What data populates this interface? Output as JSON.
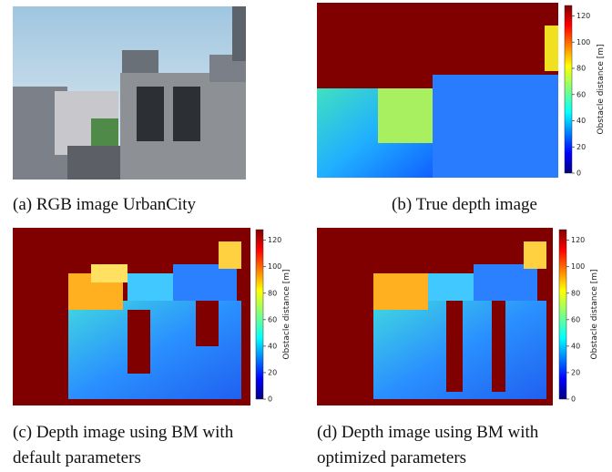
{
  "panels": [
    {
      "caption": [
        "(a) RGB image UrbanCity"
      ]
    },
    {
      "caption": [
        "(b) True depth image"
      ],
      "colorbar": {
        "label": "Obstacle distance [m]",
        "lim": [
          0,
          128
        ],
        "ticks": [
          0,
          20,
          40,
          60,
          80,
          100,
          120
        ]
      }
    },
    {
      "caption": [
        "(c) Depth image using BM with",
        "default parameters"
      ],
      "colorbar": {
        "label": "Obstacle distance [m]",
        "lim": [
          0,
          128
        ],
        "ticks": [
          0,
          20,
          40,
          60,
          80,
          100,
          120
        ]
      }
    },
    {
      "caption": [
        "(d) Depth image using BM with",
        "optimized parameters"
      ],
      "colorbar": {
        "label": "Obstacle distance [m]",
        "lim": [
          0,
          128
        ],
        "ticks": [
          0,
          20,
          40,
          60,
          80,
          100,
          120
        ]
      }
    }
  ]
}
